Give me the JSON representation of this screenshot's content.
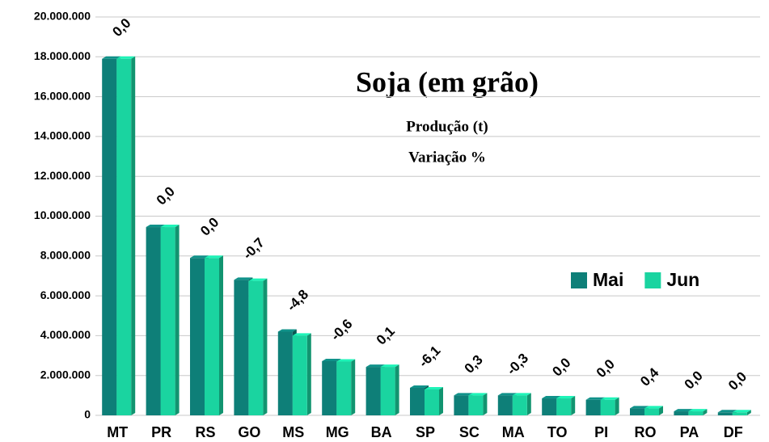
{
  "chart_data": {
    "type": "bar",
    "title": "Soja (em grão)",
    "subtitle": [
      "Produção (t)",
      "Variação %"
    ],
    "categories": [
      "MT",
      "PR",
      "RS",
      "GO",
      "MS",
      "MG",
      "BA",
      "SP",
      "SC",
      "MA",
      "TO",
      "PI",
      "RO",
      "PA",
      "DF"
    ],
    "series": [
      {
        "name": "Mai",
        "color": "#0e7f78",
        "values": [
          17900000,
          9450000,
          7900000,
          6800000,
          4200000,
          2720000,
          2430000,
          1380000,
          1000000,
          1000000,
          850000,
          780000,
          350000,
          200000,
          150000
        ]
      },
      {
        "name": "Jun",
        "color": "#1ad4a0",
        "values": [
          17900000,
          9450000,
          7900000,
          6750000,
          4000000,
          2700000,
          2430000,
          1300000,
          1000000,
          1000000,
          850000,
          780000,
          350000,
          200000,
          150000
        ]
      }
    ],
    "annotations": [
      "0,0",
      "0,0",
      "0,0",
      "-0,7",
      "-4,8",
      "-0,6",
      "0,1",
      "-6,1",
      "0,3",
      "-0,3",
      "0,0",
      "0,0",
      "0,4",
      "0,0",
      "0,0"
    ],
    "ylim": [
      0,
      20000000
    ],
    "yticks": [
      0,
      {
        "value": 2000000,
        "label": "2.000.000"
      },
      {
        "value": 4000000,
        "label": "4.000.000"
      },
      {
        "value": 6000000,
        "label": "6.000.000"
      },
      {
        "value": 8000000,
        "label": "8.000.000"
      },
      {
        "value": 10000000,
        "label": "10.000.000"
      },
      {
        "value": 12000000,
        "label": "12.000.000"
      },
      {
        "value": 14000000,
        "label": "14.000.000"
      },
      {
        "value": 16000000,
        "label": "16.000.000"
      },
      {
        "value": 18000000,
        "label": "18.000.000"
      },
      {
        "value": 20000000,
        "label": "20.000.000"
      }
    ],
    "grid": true,
    "legend": "right"
  }
}
